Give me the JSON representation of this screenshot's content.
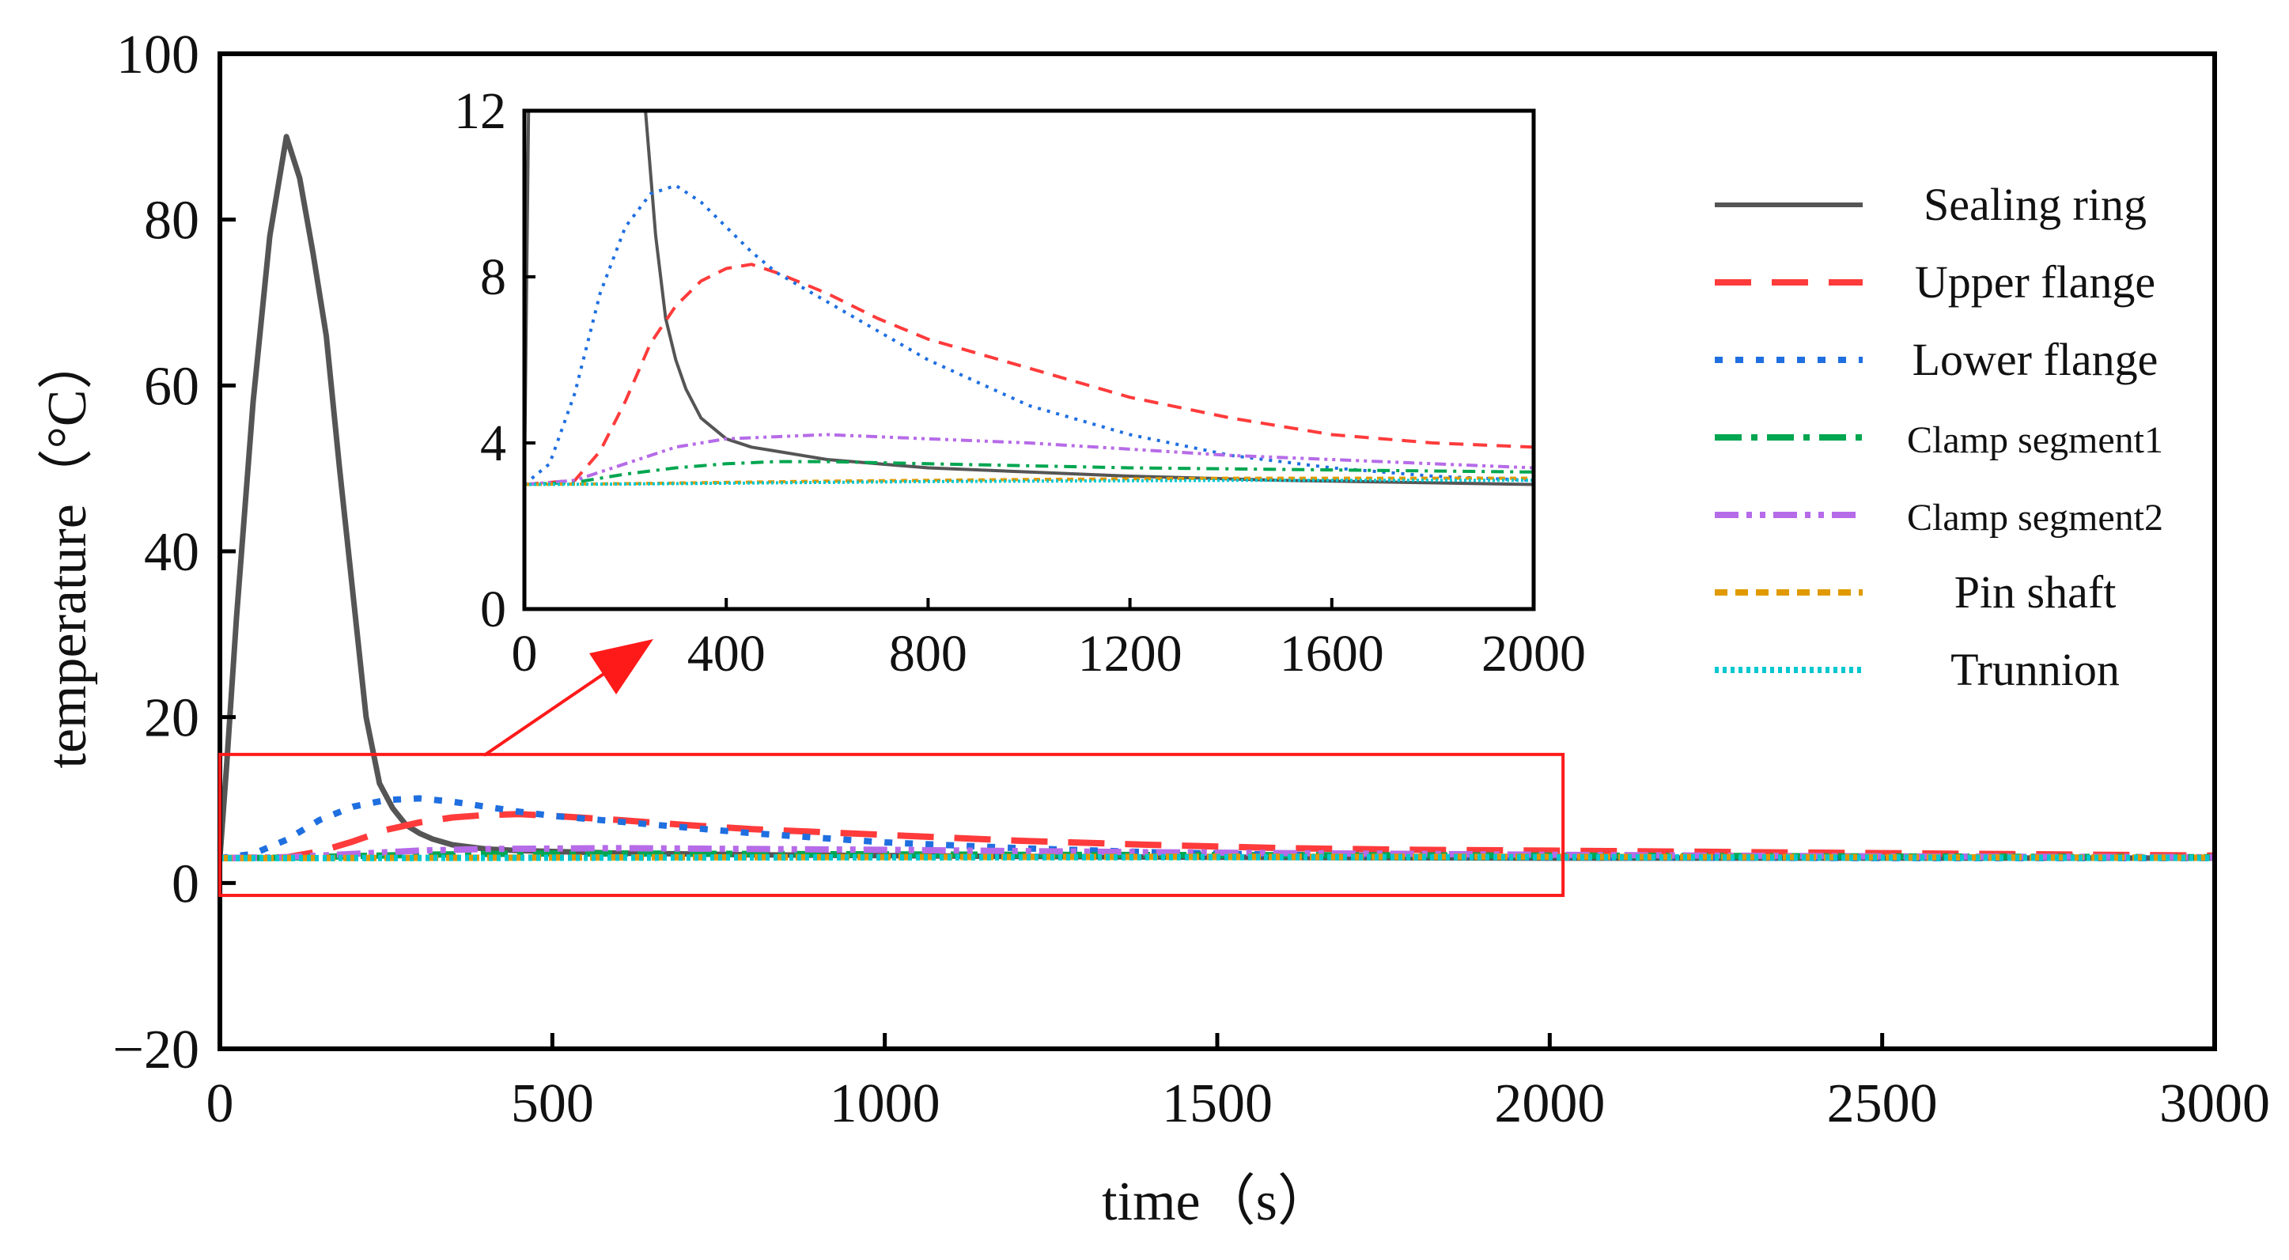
{
  "chart_data": {
    "type": "line",
    "main": {
      "xlabel": "time（s）",
      "ylabel": "temperature（°C）",
      "xlim": [
        0,
        3000
      ],
      "ylim": [
        -20,
        100
      ],
      "xticks": [
        0,
        500,
        1000,
        1500,
        2000,
        2500,
        3000
      ],
      "yticks": [
        -20,
        0,
        20,
        40,
        60,
        80,
        100
      ],
      "ytick_labels": [
        "−20",
        "0",
        "20",
        "40",
        "60",
        "80",
        "100"
      ]
    },
    "inset": {
      "xlim": [
        0,
        2000
      ],
      "ylim": [
        0,
        12
      ],
      "xticks": [
        0,
        400,
        800,
        1200,
        1600,
        2000
      ],
      "yticks": [
        0,
        4,
        8,
        12
      ],
      "zoom_region": {
        "x": [
          0,
          2020
        ],
        "y": [
          -1.5,
          15.5
        ]
      }
    },
    "legend": {
      "position": "right"
    },
    "series": [
      {
        "name": "Sealing ring",
        "color": "#555555",
        "dash": "solid",
        "x": [
          0,
          10,
          25,
          50,
          75,
          100,
          120,
          140,
          160,
          180,
          200,
          220,
          240,
          260,
          280,
          300,
          320,
          350,
          400,
          450,
          500,
          600,
          700,
          800,
          1000,
          1200,
          1500,
          2000,
          2500,
          3000
        ],
        "y": [
          3,
          14,
          32,
          58,
          78,
          90,
          85,
          76,
          66,
          50,
          35,
          20,
          12,
          9,
          7,
          6,
          5.3,
          4.6,
          4.1,
          3.9,
          3.8,
          3.6,
          3.5,
          3.4,
          3.3,
          3.2,
          3.1,
          3.0,
          3.0,
          3.0
        ]
      },
      {
        "name": "Upper flange",
        "color": "#ff3b3b",
        "dash": "long-dash",
        "x": [
          0,
          100,
          150,
          200,
          250,
          300,
          350,
          400,
          450,
          500,
          600,
          700,
          800,
          1000,
          1200,
          1400,
          1600,
          1800,
          2000,
          2500,
          3000
        ],
        "y": [
          3,
          3.1,
          3.8,
          5.0,
          6.4,
          7.3,
          7.9,
          8.2,
          8.3,
          8.1,
          7.6,
          7.0,
          6.5,
          5.8,
          5.1,
          4.6,
          4.2,
          4.0,
          3.9,
          3.6,
          3.3
        ]
      },
      {
        "name": "Lower flange",
        "color": "#1f6fe0",
        "dash": "dot",
        "x": [
          0,
          50,
          100,
          150,
          200,
          250,
          300,
          350,
          400,
          450,
          500,
          600,
          700,
          800,
          1000,
          1200,
          1400,
          1600,
          1800,
          2000,
          2500,
          3000
        ],
        "y": [
          3,
          3.5,
          5.2,
          7.6,
          9.2,
          10.0,
          10.2,
          9.8,
          9.2,
          8.6,
          8.1,
          7.4,
          6.7,
          6.0,
          4.9,
          4.2,
          3.7,
          3.4,
          3.2,
          3.1,
          3.0,
          3.0
        ]
      },
      {
        "name": "Clamp segment1",
        "color": "#00a650",
        "dash": "dash-dot",
        "x": [
          0,
          100,
          200,
          300,
          400,
          500,
          600,
          800,
          1000,
          1200,
          1600,
          2000,
          2500,
          3000
        ],
        "y": [
          3,
          3.05,
          3.25,
          3.4,
          3.5,
          3.55,
          3.55,
          3.5,
          3.45,
          3.4,
          3.35,
          3.3,
          3.2,
          3.1
        ]
      },
      {
        "name": "Clamp segment2",
        "color": "#b66be8",
        "dash": "dash-dot-dot",
        "x": [
          0,
          100,
          200,
          300,
          400,
          500,
          600,
          800,
          1000,
          1200,
          1400,
          1600,
          1800,
          2000,
          2500,
          3000
        ],
        "y": [
          3,
          3.1,
          3.5,
          3.9,
          4.1,
          4.15,
          4.2,
          4.1,
          4.0,
          3.85,
          3.7,
          3.6,
          3.5,
          3.4,
          3.2,
          3.1
        ]
      },
      {
        "name": "Pin shaft",
        "color": "#e09a00",
        "dash": "short-dash",
        "x": [
          0,
          200,
          400,
          600,
          800,
          1000,
          1400,
          2000,
          2500,
          3000
        ],
        "y": [
          3,
          3.02,
          3.05,
          3.08,
          3.1,
          3.12,
          3.15,
          3.15,
          3.1,
          3.05
        ]
      },
      {
        "name": "Trunnion",
        "color": "#00c8d0",
        "dash": "fine-dot",
        "x": [
          0,
          200,
          400,
          600,
          800,
          1000,
          1400,
          2000,
          2500,
          3000
        ],
        "y": [
          3,
          3.01,
          3.03,
          3.05,
          3.07,
          3.08,
          3.1,
          3.1,
          3.05,
          3.02
        ]
      }
    ]
  }
}
